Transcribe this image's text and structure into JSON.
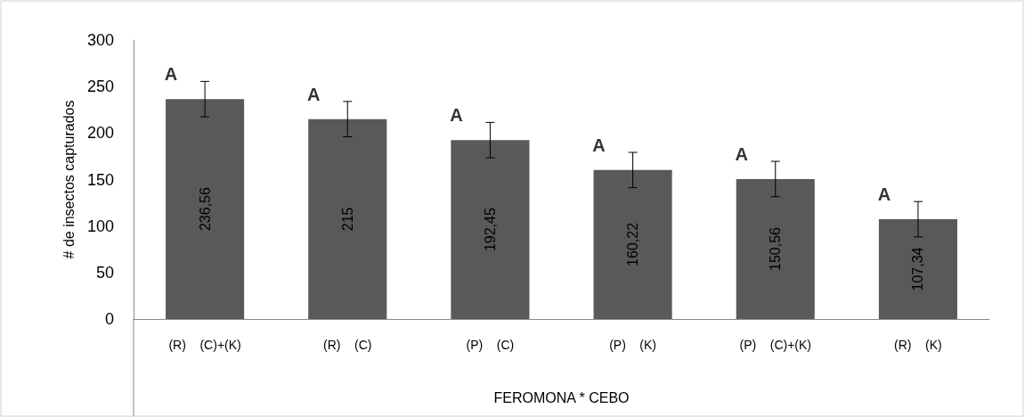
{
  "chart_data": {
    "type": "bar",
    "xlabel": "FEROMONA * CEBO",
    "ylabel": "# de insectos capturados",
    "categories": [
      "(R)    (C)+(K)",
      "(R)    (C)",
      "(P)    (C)",
      "(P)    (K)",
      "(P)    (C)+(K)",
      "(R)    (K)"
    ],
    "values": [
      236.56,
      215,
      192.45,
      160.22,
      150.56,
      107.34
    ],
    "value_labels": [
      "236,56",
      "215",
      "192,45",
      "160,22",
      "150,56",
      "107,34"
    ],
    "errors": [
      19,
      19,
      19,
      19,
      19,
      19
    ],
    "color": "#595959",
    "ylim": [
      0,
      300
    ],
    "yticks": [
      0,
      50,
      100,
      150,
      200,
      250,
      300
    ],
    "grid": false,
    "annotations": [
      "A",
      "A",
      "A",
      "A",
      "A",
      "A"
    ]
  }
}
